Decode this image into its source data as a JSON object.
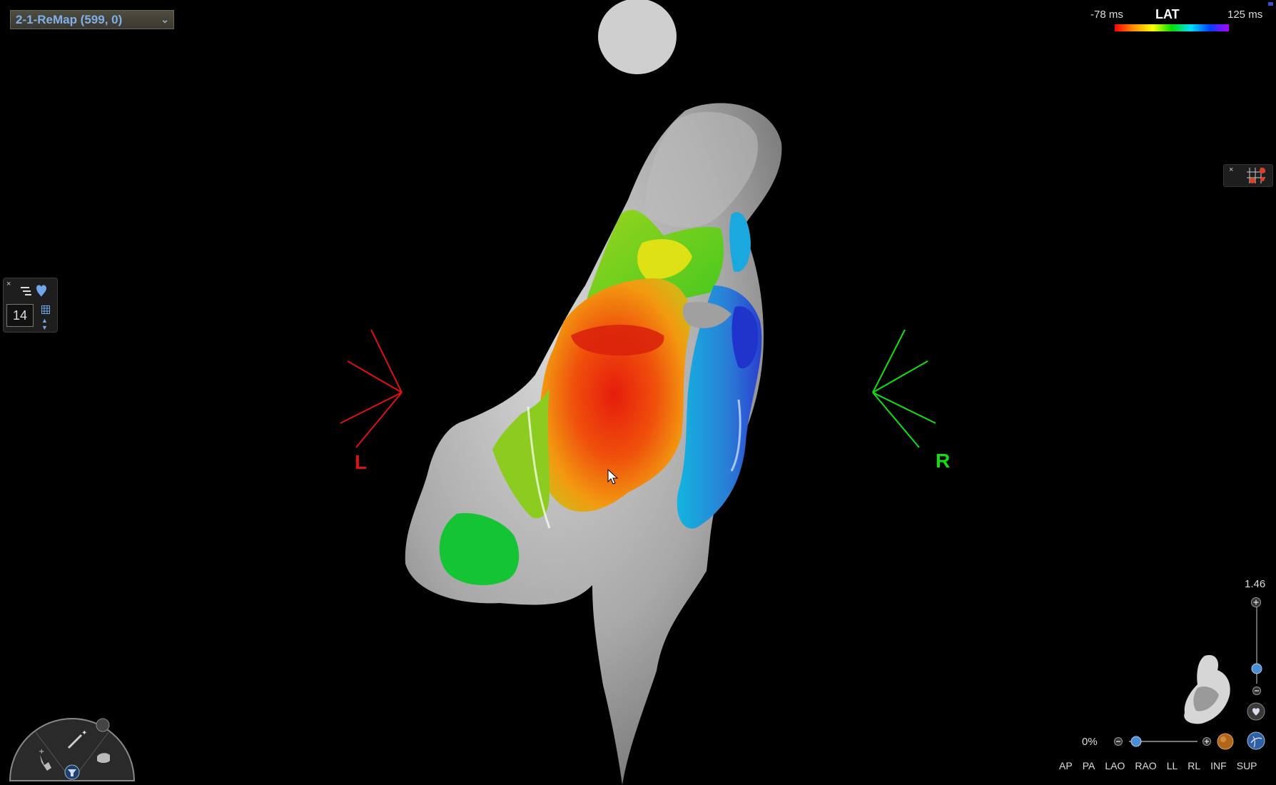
{
  "map_selector": {
    "label": "2-1-ReMap (599, 0)"
  },
  "legend": {
    "min": "-78 ms",
    "title": "LAT",
    "max": "125 ms"
  },
  "left_panel": {
    "close": "×",
    "value": "14",
    "up": "▲",
    "down": "▼"
  },
  "right_panel": {
    "close": "×"
  },
  "zoom": {
    "value": "1.46"
  },
  "opacity": {
    "value": "0%"
  },
  "orientation": {
    "left": "L",
    "right": "R"
  },
  "views": [
    "AP",
    "PA",
    "LAO",
    "RAO",
    "LL",
    "RL",
    "INF",
    "SUP"
  ],
  "colors": {
    "lat_min_color": "#ff0000",
    "lat_max_color": "#b000ff",
    "left_marker": "#e01010",
    "right_marker": "#10e010"
  }
}
